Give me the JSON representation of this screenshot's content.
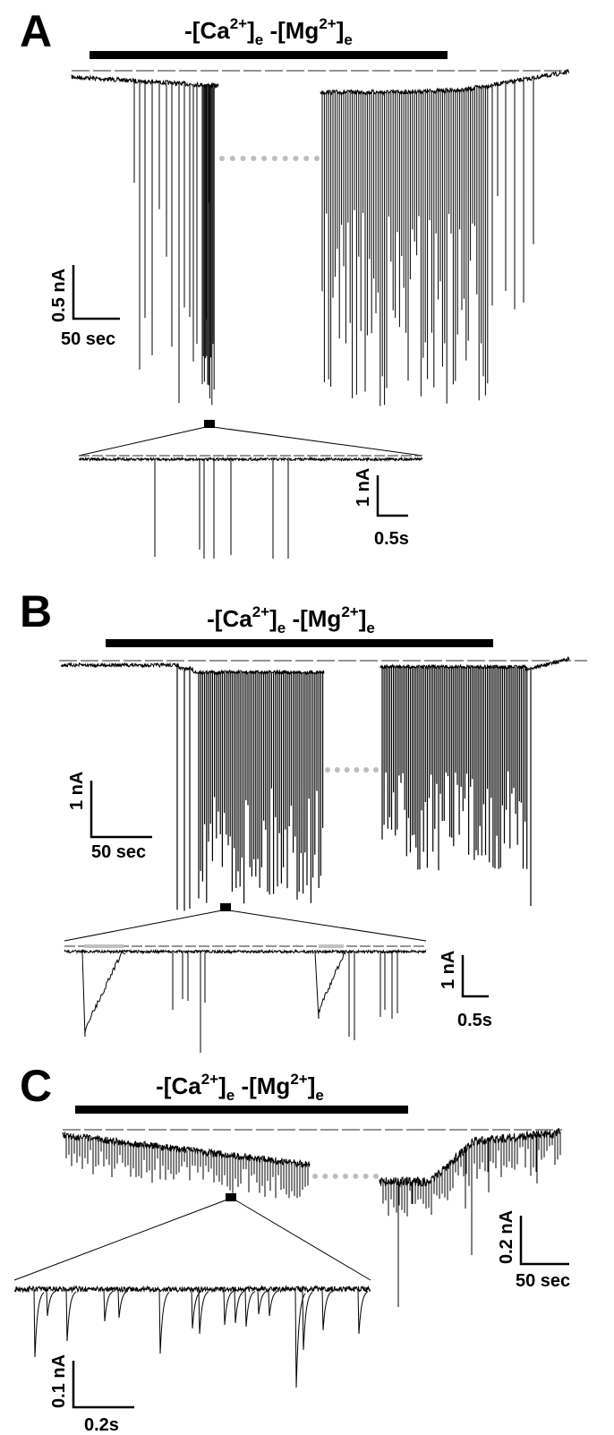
{
  "panels": [
    {
      "label": "A",
      "condition": {
        "pre1": "-[Ca",
        "sup1": "2+",
        "mid": "]",
        "sub1": "e",
        "pre2": " -[Mg",
        "sup2": "2+",
        "end": "]",
        "sub2": "e"
      },
      "scale_main": {
        "y": "0.5 nA",
        "x": "50 sec"
      },
      "scale_inset": {
        "y": "1 nA",
        "x": "0.5s"
      }
    },
    {
      "label": "B",
      "condition": {
        "pre1": "-[Ca",
        "sup1": "2+",
        "mid": "]",
        "sub1": "e",
        "pre2": " -[Mg",
        "sup2": "2+",
        "end": "]",
        "sub2": "e"
      },
      "scale_main": {
        "y": "1 nA",
        "x": "50 sec"
      },
      "scale_inset": {
        "y": "1 nA",
        "x": "0.5s"
      }
    },
    {
      "label": "C",
      "condition": {
        "pre1": "-[Ca",
        "sup1": "2+",
        "mid": "]",
        "sub1": "e",
        "pre2": " -[Mg",
        "sup2": "2+",
        "end": "]",
        "sub2": "e"
      },
      "scale_main": {
        "y": "0.2 nA",
        "x": "50 sec"
      },
      "scale_inset": {
        "y": "0.1 nA",
        "x": "0.2s"
      }
    }
  ],
  "colors": {
    "trace": "#000000",
    "gap_dots": "#bdbdbd",
    "baseline": "#555555",
    "gray_bar": "#c0c0c0"
  }
}
